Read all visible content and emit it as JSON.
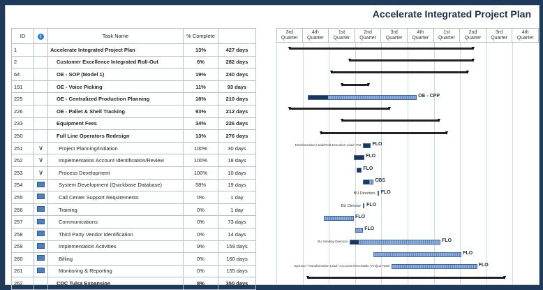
{
  "title": "Accelerate Integrated Project Plan",
  "columns": {
    "id": "ID",
    "task_name": "Task Name",
    "pct": "% Complete"
  },
  "quarters": [
    "3rd\nQuarter",
    "4th\nQuarter",
    "1st\nQuarter",
    "2nd\nQuarter",
    "3rd\nQuarter",
    "4th\nQuarter",
    "1st\nQuarter",
    "2nd\nQuarter",
    "3rd\nQuarter",
    "4th\nQuarter"
  ],
  "rows": [
    {
      "id": "1",
      "icon": "",
      "name": "Accelerate Integrated Project Plan",
      "pct": "13%",
      "dur": "427 days",
      "bold": true,
      "level": 0
    },
    {
      "id": "2",
      "icon": "",
      "name": "Customer Excellence Integrated Roll-Out",
      "pct": "6%",
      "dur": "282 days",
      "bold": true,
      "level": 1
    },
    {
      "id": "64",
      "icon": "",
      "name": "OE - SOP (Model 1)",
      "pct": "19%",
      "dur": "240 days",
      "bold": true,
      "level": 1
    },
    {
      "id": "191",
      "icon": "",
      "name": "OE - Voice Picking",
      "pct": "11%",
      "dur": "93 days",
      "bold": true,
      "level": 1
    },
    {
      "id": "225",
      "icon": "",
      "name": "OE - Centralized Production Planning",
      "pct": "18%",
      "dur": "210 days",
      "bold": true,
      "level": 1
    },
    {
      "id": "226",
      "icon": "",
      "name": "OE - Pallet & Shell Tracking",
      "pct": "93%",
      "dur": "212 days",
      "bold": true,
      "level": 1
    },
    {
      "id": "233",
      "icon": "",
      "name": "Equipment Fees",
      "pct": "34%",
      "dur": "226 days",
      "bold": true,
      "level": 1
    },
    {
      "id": "250",
      "icon": "",
      "name": "Full Line Operators Redesign",
      "pct": "13%",
      "dur": "276 days",
      "bold": true,
      "level": 1
    },
    {
      "id": "251",
      "icon": "check",
      "name": "Project Planning/Initiation",
      "pct": "100%",
      "dur": "30 days",
      "bold": false,
      "level": 2
    },
    {
      "id": "252",
      "icon": "check",
      "name": "Implementation Account Identification/Review",
      "pct": "100%",
      "dur": "18 days",
      "bold": false,
      "level": 2
    },
    {
      "id": "253",
      "icon": "check",
      "name": "Process Development",
      "pct": "100%",
      "dur": "10 days",
      "bold": false,
      "level": 2
    },
    {
      "id": "254",
      "icon": "calendar",
      "name": "System Development (Quickbase Database)",
      "pct": "58%",
      "dur": "19 days",
      "bold": false,
      "level": 2
    },
    {
      "id": "255",
      "icon": "calendar",
      "name": "Call Center Support Requirements",
      "pct": "0%",
      "dur": "1 day",
      "bold": false,
      "level": 2
    },
    {
      "id": "256",
      "icon": "calendar",
      "name": "Training",
      "pct": "0%",
      "dur": "1 day",
      "bold": false,
      "level": 2
    },
    {
      "id": "257",
      "icon": "calendar",
      "name": "Communications",
      "pct": "0%",
      "dur": "73 days",
      "bold": false,
      "level": 2
    },
    {
      "id": "258",
      "icon": "calendar",
      "name": "Third Party Vendor Identification",
      "pct": "0%",
      "dur": "14 days",
      "bold": false,
      "level": 2
    },
    {
      "id": "259",
      "icon": "calendar",
      "name": "Implementation Activities",
      "pct": "9%",
      "dur": "159 days",
      "bold": false,
      "level": 2
    },
    {
      "id": "260",
      "icon": "calendar",
      "name": "Billing",
      "pct": "0%",
      "dur": "160 days",
      "bold": false,
      "level": 2
    },
    {
      "id": "261",
      "icon": "calendar",
      "name": "Monitoring & Reporting",
      "pct": "0%",
      "dur": "155 days",
      "bold": false,
      "level": 2
    },
    {
      "id": "262",
      "icon": "",
      "name": "CDC Tulsa Expansion",
      "pct": "8%",
      "dur": "350 days",
      "bold": true,
      "level": 1
    }
  ],
  "bars": [
    {
      "type": "summary",
      "start": 0.5,
      "end": 7.5
    },
    {
      "type": "summary",
      "start": 2.8,
      "end": 7.5
    },
    {
      "type": "summary",
      "start": 2.1,
      "end": 7.3
    },
    {
      "type": "summary",
      "start": 2.5,
      "end": 3.5
    },
    {
      "type": "task",
      "start": 1.2,
      "end": 5.3,
      "done": 0.18,
      "label": "OE - CPP"
    },
    {
      "type": "summary",
      "start": 0.5,
      "end": 4.3
    },
    {
      "type": "summary",
      "start": 2.5,
      "end": 6.2
    },
    {
      "type": "summary",
      "start": 1.7,
      "end": 6.5
    },
    {
      "type": "task",
      "start": 3.3,
      "end": 3.55,
      "done": 1,
      "label": "FLO",
      "left": "Transformation Lead/Field Execution Lead / PM"
    },
    {
      "type": "task",
      "start": 2.95,
      "end": 3.3,
      "done": 1,
      "label": "FLO"
    },
    {
      "type": "task",
      "start": 3.05,
      "end": 3.2,
      "done": 1,
      "label": "FLO"
    },
    {
      "type": "task",
      "start": 3.3,
      "end": 3.65,
      "done": 0.58,
      "label": "CBS"
    },
    {
      "type": "milestone",
      "start": 3.85,
      "label": "FLO",
      "left": "BU Directors"
    },
    {
      "type": "milestone",
      "start": 3.3,
      "label": "FLO",
      "left": "BU Director"
    },
    {
      "type": "task",
      "start": 1.8,
      "end": 2.9,
      "done": 0,
      "label": "FLO"
    },
    {
      "type": "task",
      "start": 3.0,
      "end": 3.25,
      "done": 0,
      "label": "FLO"
    },
    {
      "type": "task",
      "start": 2.8,
      "end": 6.2,
      "done": 0.09,
      "label": "FLO",
      "left": "BU Vending Directors"
    },
    {
      "type": "task",
      "start": 3.7,
      "end": 7.0,
      "done": 0,
      "label": "FLO"
    },
    {
      "type": "task",
      "start": 4.4,
      "end": 7.6,
      "done": 0,
      "label": "FLO",
      "left": "Sponsor / Transformation Lead / Accounts Receivable / Project Team"
    },
    {
      "type": "summary",
      "start": 1.2,
      "end": 8.7
    }
  ]
}
